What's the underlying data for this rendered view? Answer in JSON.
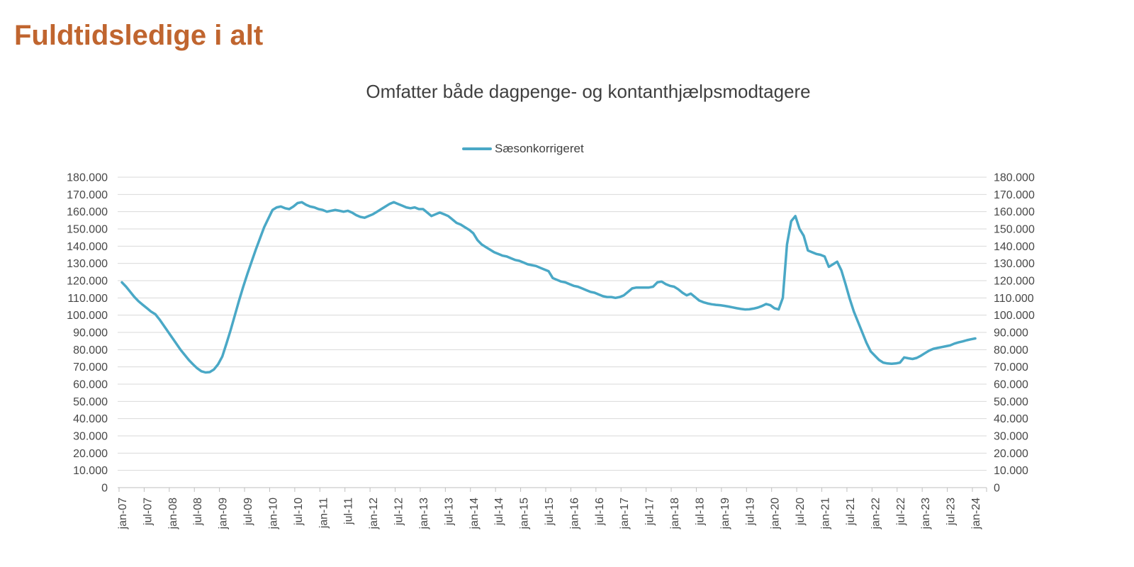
{
  "page": {
    "title": "Fuldtidsledige i alt",
    "title_color": "#C0652F"
  },
  "chart_data": {
    "type": "line",
    "title": "Omfatter både dagpenge- og kontanthjælpsmodtagere",
    "legend_position": "top-center",
    "background": "#FFFFFF",
    "grid": "horizontal",
    "gridline_color": "#D9D9D9",
    "axis_line_color": "#BFBFBF",
    "axis_label_color": "#474747",
    "ylim": [
      0,
      180000
    ],
    "y_tick_step": 10000,
    "y_axis_sides": [
      "left",
      "right"
    ],
    "y_tick_labels": [
      "0",
      "10.000",
      "20.000",
      "30.000",
      "40.000",
      "50.000",
      "60.000",
      "70.000",
      "80.000",
      "90.000",
      "100.000",
      "110.000",
      "120.000",
      "130.000",
      "140.000",
      "150.000",
      "160.000",
      "170.000",
      "180.000"
    ],
    "x_start": "jan-07",
    "x_end": "jan-24",
    "x_frequency": "monthly",
    "x_tick_interval_months": 6,
    "x_tick_labels": [
      "jan-07",
      "jul-07",
      "jan-08",
      "jul-08",
      "jan-09",
      "jul-09",
      "jan-10",
      "jul-10",
      "jan-11",
      "jul-11",
      "jan-12",
      "jul-12",
      "jan-13",
      "jul-13",
      "jan-14",
      "jul-14",
      "jan-15",
      "jul-15",
      "jan-16",
      "jul-16",
      "jan-17",
      "jul-17",
      "jan-18",
      "jul-18",
      "jan-19",
      "jul-19",
      "jan-20",
      "jul-20",
      "jan-21",
      "jul-21",
      "jan-22",
      "jul-22",
      "jan-23",
      "jul-23",
      "jan-24"
    ],
    "series": [
      {
        "name": "Sæsonkorrigeret",
        "color": "#4AA8C6",
        "stroke_width": 3.5,
        "values": [
          119000,
          116500,
          113500,
          110500,
          108000,
          106000,
          104000,
          102000,
          100500,
          97500,
          94000,
          90500,
          87000,
          83500,
          80000,
          77000,
          74000,
          71500,
          69200,
          67500,
          66800,
          67000,
          68500,
          71500,
          76000,
          83500,
          91500,
          100000,
          108500,
          116500,
          124000,
          131000,
          138000,
          144500,
          151000,
          156000,
          161000,
          162500,
          163000,
          162000,
          161500,
          163000,
          165000,
          165500,
          164000,
          163000,
          162500,
          161500,
          161000,
          160000,
          160500,
          161000,
          160500,
          160000,
          160500,
          159500,
          158000,
          157000,
          156500,
          157500,
          158500,
          160000,
          161500,
          163000,
          164500,
          165500,
          164500,
          163500,
          162500,
          162000,
          162500,
          161500,
          161500,
          159500,
          157500,
          158500,
          159500,
          158500,
          157500,
          155500,
          153500,
          152500,
          151000,
          149500,
          147500,
          143500,
          141000,
          139500,
          138000,
          136500,
          135500,
          134500,
          134000,
          133000,
          132000,
          131500,
          130500,
          129500,
          129000,
          128500,
          127500,
          126500,
          125500,
          121500,
          120500,
          119500,
          119000,
          118000,
          117000,
          116500,
          115500,
          114500,
          113500,
          113000,
          112000,
          111000,
          110500,
          110500,
          110000,
          110500,
          111500,
          113500,
          115500,
          116000,
          116000,
          116000,
          116000,
          116500,
          119000,
          119500,
          118000,
          117000,
          116500,
          115000,
          113000,
          111500,
          112500,
          110500,
          108500,
          107500,
          106800,
          106300,
          106000,
          105800,
          105400,
          105000,
          104500,
          104000,
          103600,
          103300,
          103400,
          103800,
          104400,
          105300,
          106500,
          105800,
          104000,
          103300,
          110000,
          141000,
          154500,
          157500,
          150000,
          146000,
          137500,
          136500,
          135500,
          135000,
          134000,
          128000,
          129500,
          131000,
          126000,
          118000,
          109500,
          102000,
          96000,
          90000,
          84000,
          79000,
          76500,
          74000,
          72500,
          72000,
          71800,
          72000,
          72500,
          75500,
          75000,
          74600,
          75200,
          76500,
          78000,
          79500,
          80500,
          81000,
          81500,
          82000,
          82500,
          83500,
          84200,
          84800,
          85500,
          86000,
          86500
        ]
      }
    ]
  }
}
